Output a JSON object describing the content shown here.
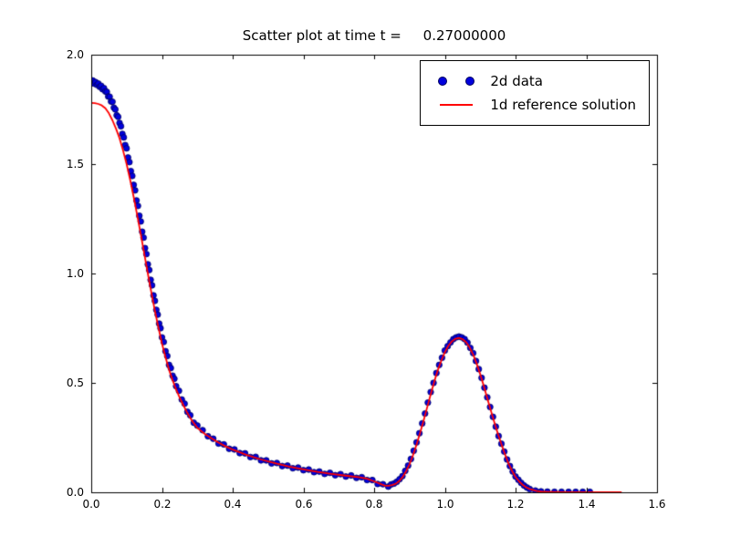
{
  "figure": {
    "background": "#ffffff"
  },
  "chart_data": {
    "type": "scatter",
    "title": "Scatter plot at time t =     0.27000000",
    "xlabel": "",
    "ylabel": "",
    "xlim": [
      0.0,
      1.6
    ],
    "ylim": [
      0.0,
      2.0
    ],
    "grid": false,
    "x_ticks": [
      0.0,
      0.2,
      0.4,
      0.6,
      0.8,
      1.0,
      1.2,
      1.4,
      1.6
    ],
    "x_tick_labels": [
      "0.0",
      "0.2",
      "0.4",
      "0.6",
      "0.8",
      "1.0",
      "1.2",
      "1.4",
      "1.6"
    ],
    "y_ticks": [
      0.0,
      0.5,
      1.0,
      1.5,
      2.0
    ],
    "y_tick_labels": [
      "0.0",
      "0.5",
      "1.0",
      "1.5",
      "2.0"
    ],
    "colors": {
      "background": "#ffffff",
      "frame": "#000000",
      "scatter_fill": "#0000dd",
      "scatter_edge": "#000060",
      "line": "#ff0000",
      "text": "#000000"
    },
    "legend": {
      "position": "upper right",
      "entries": [
        {
          "label": "2d data",
          "type": "scatter",
          "color": "#0000dd"
        },
        {
          "label": "1d reference solution",
          "type": "line",
          "color": "#ff0000"
        }
      ]
    },
    "series": [
      {
        "name": "2d data",
        "type": "scatter",
        "color": "#0000dd",
        "marker": "circle",
        "points": [
          [
            0.004,
            1.882
          ],
          [
            0.008,
            1.868
          ],
          [
            0.012,
            1.875
          ],
          [
            0.016,
            1.862
          ],
          [
            0.02,
            1.868
          ],
          [
            0.024,
            1.853
          ],
          [
            0.028,
            1.858
          ],
          [
            0.032,
            1.842
          ],
          [
            0.036,
            1.847
          ],
          [
            0.04,
            1.832
          ],
          [
            0.044,
            1.83
          ],
          [
            0.048,
            1.809
          ],
          [
            0.052,
            1.808
          ],
          [
            0.056,
            1.786
          ],
          [
            0.06,
            1.785
          ],
          [
            0.064,
            1.758
          ],
          [
            0.068,
            1.75
          ],
          [
            0.072,
            1.723
          ],
          [
            0.076,
            1.716
          ],
          [
            0.08,
            1.688
          ],
          [
            0.084,
            1.673
          ],
          [
            0.088,
            1.638
          ],
          [
            0.092,
            1.622
          ],
          [
            0.096,
            1.587
          ],
          [
            0.1,
            1.572
          ],
          [
            0.104,
            1.53
          ],
          [
            0.108,
            1.509
          ],
          [
            0.112,
            1.468
          ],
          [
            0.116,
            1.446
          ],
          [
            0.12,
            1.405
          ],
          [
            0.124,
            1.38
          ],
          [
            0.128,
            1.334
          ],
          [
            0.132,
            1.309
          ],
          [
            0.136,
            1.264
          ],
          [
            0.14,
            1.238
          ],
          [
            0.144,
            1.191
          ],
          [
            0.148,
            1.164
          ],
          [
            0.152,
            1.116
          ],
          [
            0.156,
            1.089
          ],
          [
            0.16,
            1.042
          ],
          [
            0.164,
            1.016
          ],
          [
            0.168,
            0.971
          ],
          [
            0.172,
            0.946
          ],
          [
            0.176,
            0.9
          ],
          [
            0.18,
            0.875
          ],
          [
            0.184,
            0.834
          ],
          [
            0.188,
            0.812
          ],
          [
            0.192,
            0.771
          ],
          [
            0.196,
            0.75
          ],
          [
            0.2,
            0.708
          ],
          [
            0.205,
            0.687
          ],
          [
            0.21,
            0.645
          ],
          [
            0.215,
            0.623
          ],
          [
            0.22,
            0.582
          ],
          [
            0.225,
            0.568
          ],
          [
            0.23,
            0.533
          ],
          [
            0.235,
            0.519
          ],
          [
            0.24,
            0.485
          ],
          [
            0.248,
            0.464
          ],
          [
            0.256,
            0.424
          ],
          [
            0.264,
            0.405
          ],
          [
            0.272,
            0.368
          ],
          [
            0.28,
            0.352
          ],
          [
            0.29,
            0.318
          ],
          [
            0.3,
            0.305
          ],
          [
            0.315,
            0.284
          ],
          [
            0.33,
            0.256
          ],
          [
            0.345,
            0.245
          ],
          [
            0.36,
            0.223
          ],
          [
            0.375,
            0.219
          ],
          [
            0.39,
            0.199
          ],
          [
            0.405,
            0.196
          ],
          [
            0.42,
            0.179
          ],
          [
            0.435,
            0.178
          ],
          [
            0.45,
            0.161
          ],
          [
            0.465,
            0.162
          ],
          [
            0.48,
            0.146
          ],
          [
            0.495,
            0.146
          ],
          [
            0.51,
            0.132
          ],
          [
            0.525,
            0.134
          ],
          [
            0.54,
            0.12
          ],
          [
            0.555,
            0.122
          ],
          [
            0.57,
            0.11
          ],
          [
            0.585,
            0.113
          ],
          [
            0.6,
            0.101
          ],
          [
            0.615,
            0.104
          ],
          [
            0.63,
            0.092
          ],
          [
            0.645,
            0.095
          ],
          [
            0.66,
            0.084
          ],
          [
            0.675,
            0.089
          ],
          [
            0.69,
            0.078
          ],
          [
            0.705,
            0.083
          ],
          [
            0.72,
            0.072
          ],
          [
            0.735,
            0.077
          ],
          [
            0.75,
            0.066
          ],
          [
            0.765,
            0.069
          ],
          [
            0.78,
            0.056
          ],
          [
            0.795,
            0.056
          ],
          [
            0.81,
            0.038
          ],
          [
            0.825,
            0.037
          ],
          [
            0.84,
            0.026
          ],
          [
            0.848,
            0.036
          ],
          [
            0.856,
            0.04
          ],
          [
            0.864,
            0.048
          ],
          [
            0.872,
            0.06
          ],
          [
            0.88,
            0.074
          ],
          [
            0.888,
            0.098
          ],
          [
            0.896,
            0.122
          ],
          [
            0.904,
            0.152
          ],
          [
            0.912,
            0.19
          ],
          [
            0.92,
            0.228
          ],
          [
            0.928,
            0.27
          ],
          [
            0.936,
            0.315
          ],
          [
            0.944,
            0.36
          ],
          [
            0.952,
            0.41
          ],
          [
            0.96,
            0.458
          ],
          [
            0.968,
            0.5
          ],
          [
            0.976,
            0.545
          ],
          [
            0.984,
            0.582
          ],
          [
            0.992,
            0.615
          ],
          [
            1.0,
            0.648
          ],
          [
            1.008,
            0.668
          ],
          [
            1.016,
            0.685
          ],
          [
            1.024,
            0.7
          ],
          [
            1.032,
            0.708
          ],
          [
            1.04,
            0.712
          ],
          [
            1.048,
            0.708
          ],
          [
            1.056,
            0.7
          ],
          [
            1.064,
            0.684
          ],
          [
            1.072,
            0.66
          ],
          [
            1.08,
            0.636
          ],
          [
            1.088,
            0.6
          ],
          [
            1.096,
            0.563
          ],
          [
            1.104,
            0.523
          ],
          [
            1.112,
            0.478
          ],
          [
            1.12,
            0.434
          ],
          [
            1.128,
            0.39
          ],
          [
            1.136,
            0.345
          ],
          [
            1.144,
            0.3
          ],
          [
            1.152,
            0.257
          ],
          [
            1.16,
            0.222
          ],
          [
            1.168,
            0.186
          ],
          [
            1.176,
            0.15
          ],
          [
            1.184,
            0.12
          ],
          [
            1.192,
            0.095
          ],
          [
            1.2,
            0.072
          ],
          [
            1.208,
            0.057
          ],
          [
            1.216,
            0.043
          ],
          [
            1.224,
            0.031
          ],
          [
            1.232,
            0.022
          ],
          [
            1.24,
            0.015
          ],
          [
            1.256,
            0.008
          ],
          [
            1.272,
            0.004
          ],
          [
            1.29,
            0.003
          ],
          [
            1.31,
            0.002
          ],
          [
            1.33,
            0.002
          ],
          [
            1.35,
            0.002
          ],
          [
            1.37,
            0.002
          ],
          [
            1.39,
            0.002
          ],
          [
            1.41,
            0.002
          ]
        ]
      },
      {
        "name": "1d reference solution",
        "type": "line",
        "color": "#ff0000",
        "points": [
          [
            0.0,
            1.78
          ],
          [
            0.01,
            1.779
          ],
          [
            0.02,
            1.775
          ],
          [
            0.03,
            1.768
          ],
          [
            0.04,
            1.755
          ],
          [
            0.05,
            1.732
          ],
          [
            0.06,
            1.7
          ],
          [
            0.07,
            1.662
          ],
          [
            0.08,
            1.618
          ],
          [
            0.09,
            1.562
          ],
          [
            0.1,
            1.5
          ],
          [
            0.11,
            1.428
          ],
          [
            0.12,
            1.35
          ],
          [
            0.13,
            1.266
          ],
          [
            0.14,
            1.18
          ],
          [
            0.15,
            1.09
          ],
          [
            0.16,
            1.0
          ],
          [
            0.17,
            0.913
          ],
          [
            0.18,
            0.83
          ],
          [
            0.19,
            0.753
          ],
          [
            0.2,
            0.68
          ],
          [
            0.21,
            0.618
          ],
          [
            0.22,
            0.56
          ],
          [
            0.23,
            0.513
          ],
          [
            0.24,
            0.47
          ],
          [
            0.25,
            0.433
          ],
          [
            0.26,
            0.4
          ],
          [
            0.27,
            0.368
          ],
          [
            0.28,
            0.34
          ],
          [
            0.29,
            0.316
          ],
          [
            0.3,
            0.295
          ],
          [
            0.32,
            0.268
          ],
          [
            0.34,
            0.247
          ],
          [
            0.36,
            0.227
          ],
          [
            0.38,
            0.21
          ],
          [
            0.4,
            0.195
          ],
          [
            0.44,
            0.17
          ],
          [
            0.48,
            0.15
          ],
          [
            0.52,
            0.133
          ],
          [
            0.56,
            0.117
          ],
          [
            0.6,
            0.105
          ],
          [
            0.64,
            0.093
          ],
          [
            0.68,
            0.084
          ],
          [
            0.72,
            0.076
          ],
          [
            0.76,
            0.068
          ],
          [
            0.78,
            0.062
          ],
          [
            0.8,
            0.05
          ],
          [
            0.82,
            0.037
          ],
          [
            0.83,
            0.031
          ],
          [
            0.84,
            0.03
          ],
          [
            0.85,
            0.033
          ],
          [
            0.86,
            0.038
          ],
          [
            0.87,
            0.05
          ],
          [
            0.88,
            0.068
          ],
          [
            0.89,
            0.095
          ],
          [
            0.9,
            0.128
          ],
          [
            0.91,
            0.17
          ],
          [
            0.92,
            0.218
          ],
          [
            0.93,
            0.272
          ],
          [
            0.94,
            0.328
          ],
          [
            0.95,
            0.388
          ],
          [
            0.96,
            0.448
          ],
          [
            0.97,
            0.505
          ],
          [
            0.98,
            0.558
          ],
          [
            0.99,
            0.602
          ],
          [
            1.0,
            0.64
          ],
          [
            1.01,
            0.67
          ],
          [
            1.02,
            0.69
          ],
          [
            1.03,
            0.702
          ],
          [
            1.04,
            0.706
          ],
          [
            1.05,
            0.7
          ],
          [
            1.06,
            0.686
          ],
          [
            1.07,
            0.662
          ],
          [
            1.08,
            0.63
          ],
          [
            1.09,
            0.588
          ],
          [
            1.1,
            0.54
          ],
          [
            1.11,
            0.486
          ],
          [
            1.12,
            0.43
          ],
          [
            1.13,
            0.374
          ],
          [
            1.14,
            0.32
          ],
          [
            1.15,
            0.268
          ],
          [
            1.16,
            0.22
          ],
          [
            1.17,
            0.174
          ],
          [
            1.18,
            0.132
          ],
          [
            1.19,
            0.098
          ],
          [
            1.2,
            0.07
          ],
          [
            1.21,
            0.05
          ],
          [
            1.22,
            0.034
          ],
          [
            1.23,
            0.023
          ],
          [
            1.24,
            0.015
          ],
          [
            1.26,
            0.006
          ],
          [
            1.28,
            0.002
          ],
          [
            1.3,
            0.001
          ],
          [
            1.35,
            0.0
          ],
          [
            1.4,
            0.0
          ],
          [
            1.45,
            0.0
          ],
          [
            1.5,
            0.0
          ]
        ]
      }
    ]
  }
}
